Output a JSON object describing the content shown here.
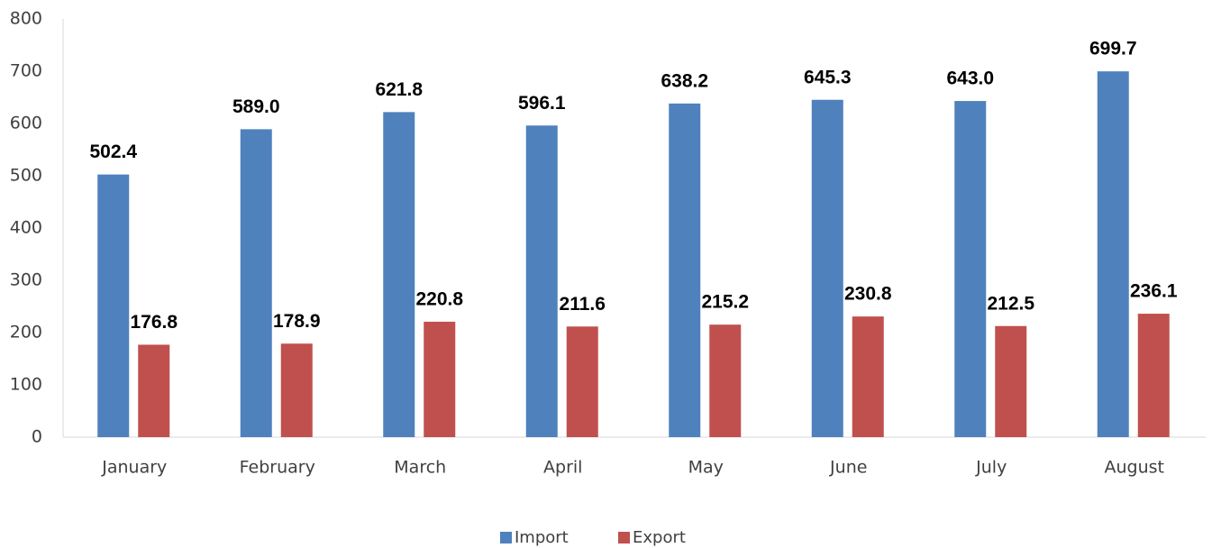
{
  "chart_data": {
    "type": "bar",
    "categories": [
      "January",
      "February",
      "March",
      "April",
      "May",
      "June",
      "July",
      "August"
    ],
    "series": [
      {
        "name": "Import",
        "color": "#4f81bd",
        "values": [
          502.4,
          589.0,
          621.8,
          596.1,
          638.2,
          645.3,
          643.0,
          699.7
        ],
        "value_labels": [
          "502.4",
          "589.0",
          "621.8",
          "596.1",
          "638.2",
          "645.3",
          "643.0",
          "699.7"
        ]
      },
      {
        "name": "Export",
        "color": "#c0504d",
        "values": [
          176.8,
          178.9,
          220.8,
          211.6,
          215.2,
          230.8,
          212.5,
          236.1
        ],
        "value_labels": [
          "176.8",
          "178.9",
          "220.8",
          "211.6",
          "215.2",
          "230.8",
          "212.5",
          "236.1"
        ]
      }
    ],
    "ylim": [
      0,
      800
    ],
    "yticks": [
      0,
      100,
      200,
      300,
      400,
      500,
      600,
      700,
      800
    ],
    "grid": false,
    "legend": "bottom"
  }
}
